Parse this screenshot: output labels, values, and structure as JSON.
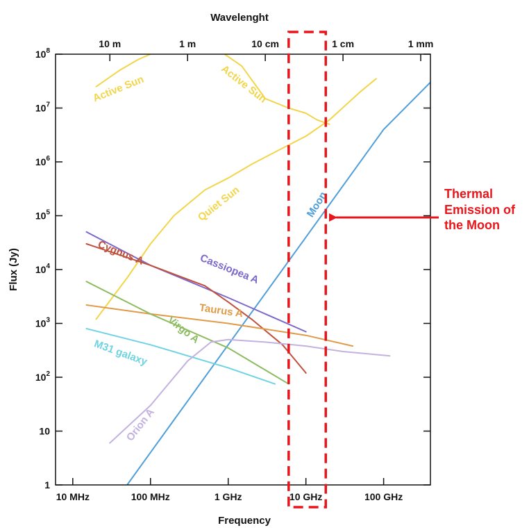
{
  "chart_data": {
    "type": "line",
    "title": "",
    "xlabel": "Frequency",
    "ylabel": "Flux (Jy)",
    "top_axis_label": "Wavelenght",
    "x_scale": "log",
    "y_scale": "log",
    "xlim_hz": [
      6000000.0,
      400000000000.0
    ],
    "ylim": [
      1,
      100000000.0
    ],
    "x_ticks": [
      {
        "value": 10000000.0,
        "label": "10 MHz"
      },
      {
        "value": 100000000.0,
        "label": "100 MHz"
      },
      {
        "value": 1000000000.0,
        "label": "1 GHz"
      },
      {
        "value": 10000000000.0,
        "label": "10 GHz"
      },
      {
        "value": 100000000000.0,
        "label": "100 GHz"
      }
    ],
    "top_ticks": [
      {
        "value": 30000000.0,
        "label": "10 m"
      },
      {
        "value": 300000000.0,
        "label": "1 m"
      },
      {
        "value": 3000000000.0,
        "label": "10 cm"
      },
      {
        "value": 30000000000.0,
        "label": "1 cm"
      },
      {
        "value": 300000000000.0,
        "label": "1 mm"
      }
    ],
    "y_ticks": [
      {
        "exp": 8,
        "label": "10",
        "sup": "8"
      },
      {
        "exp": 7,
        "label": "10",
        "sup": "7"
      },
      {
        "exp": 6,
        "label": "10",
        "sup": "6"
      },
      {
        "exp": 5,
        "label": "10",
        "sup": "5"
      },
      {
        "exp": 4,
        "label": "10",
        "sup": "4"
      },
      {
        "exp": 3,
        "label": "10",
        "sup": "3"
      },
      {
        "exp": 2,
        "label": "10",
        "sup": "2"
      },
      {
        "exp": 1,
        "label": "10",
        "sup": ""
      },
      {
        "exp": 0,
        "label": "1",
        "sup": ""
      }
    ],
    "series": [
      {
        "name": "Active Sun",
        "color": "#f2d54a",
        "label_pos": [
          40000000.0,
          20000000.0
        ],
        "label_angle": -22,
        "points": [
          [
            20000000.0,
            25000000.0
          ],
          [
            40000000.0,
            50000000.0
          ],
          [
            70000000.0,
            80000000.0
          ],
          [
            100000000.0,
            100000000.0
          ]
        ]
      },
      {
        "name": "Active Sun",
        "color": "#f2d54a",
        "label_pos": [
          1500000000.0,
          25000000.0
        ],
        "label_angle": 38,
        "points": [
          [
            900000000.0,
            100000000.0
          ],
          [
            1500000000.0,
            60000000.0
          ],
          [
            3000000000.0,
            15000000.0
          ],
          [
            6000000000.0,
            10000000.0
          ],
          [
            10000000000.0,
            8000000.0
          ],
          [
            14000000000.0,
            6000000.0
          ],
          [
            20000000000.0,
            5000000.0
          ]
        ]
      },
      {
        "name": "Quiet Sun",
        "color": "#f2d54a",
        "label_pos": [
          800000000.0,
          150000.0
        ],
        "label_angle": -38,
        "points": [
          [
            20000000.0,
            1200.0
          ],
          [
            50000000.0,
            7000.0
          ],
          [
            100000000.0,
            30000.0
          ],
          [
            200000000.0,
            100000.0
          ],
          [
            500000000.0,
            300000.0
          ],
          [
            1000000000.0,
            500000.0
          ],
          [
            2000000000.0,
            900000.0
          ],
          [
            5000000000.0,
            1800000.0
          ],
          [
            10000000000.0,
            3000000.0
          ],
          [
            20000000000.0,
            6000000.0
          ],
          [
            50000000000.0,
            20000000.0
          ],
          [
            80000000000.0,
            35000000.0
          ]
        ]
      },
      {
        "name": "Moon",
        "color": "#4f9ed9",
        "label_pos": [
          15000000000.0,
          150000.0
        ],
        "label_angle": -58,
        "points": [
          [
            50000000.0,
            1.0
          ],
          [
            100000000.0,
            4.0
          ],
          [
            1000000000.0,
            400.0
          ],
          [
            10000000000.0,
            40000.0
          ],
          [
            100000000000.0,
            4000000.0
          ],
          [
            400000000000.0,
            30000000.0
          ]
        ]
      },
      {
        "name": "Cassiopea A",
        "color": "#7b68c9",
        "label_pos": [
          1000000000.0,
          9000.0
        ],
        "label_angle": 22,
        "points": [
          [
            15000000.0,
            50000.0
          ],
          [
            100000000.0,
            12000.0
          ],
          [
            1000000000.0,
            3000.0
          ],
          [
            10000000000.0,
            700.0
          ]
        ]
      },
      {
        "name": "Cygnus A",
        "color": "#c0503c",
        "label_pos": [
          40000000.0,
          18000.0
        ],
        "label_angle": 22,
        "points": [
          [
            15000000.0,
            30000.0
          ],
          [
            100000000.0,
            12000.0
          ],
          [
            500000000.0,
            5000.0
          ],
          [
            1000000000.0,
            2500.0
          ],
          [
            2000000000.0,
            1200.0
          ],
          [
            5000000000.0,
            400.0
          ],
          [
            10000000000.0,
            120.0
          ]
        ]
      },
      {
        "name": "Taurus A",
        "color": "#e09a48",
        "label_pos": [
          800000000.0,
          1500.0
        ],
        "label_angle": 8,
        "points": [
          [
            15000000.0,
            2200.0
          ],
          [
            100000000.0,
            1500.0
          ],
          [
            1000000000.0,
            1000.0
          ],
          [
            10000000000.0,
            600.0
          ],
          [
            40000000000.0,
            380.0
          ]
        ]
      },
      {
        "name": "Virgo A",
        "color": "#8dbb60",
        "label_pos": [
          250000000.0,
          680.0
        ],
        "label_angle": 38,
        "points": [
          [
            15000000.0,
            6000.0
          ],
          [
            100000000.0,
            1500.0
          ],
          [
            1000000000.0,
            350.0
          ],
          [
            6000000000.0,
            75.0
          ]
        ]
      },
      {
        "name": "M31 galaxy",
        "color": "#6fd3e4",
        "label_pos": [
          40000000.0,
          250.0
        ],
        "label_angle": 20,
        "points": [
          [
            15000000.0,
            800.0
          ],
          [
            100000000.0,
            400.0
          ],
          [
            1000000000.0,
            150.0
          ],
          [
            4000000000.0,
            75.0
          ]
        ]
      },
      {
        "name": "Orion A",
        "color": "#c3b1e0",
        "label_pos": [
          80000000.0,
          12.0
        ],
        "label_angle": -52,
        "points": [
          [
            30000000.0,
            6.0
          ],
          [
            100000000.0,
            30.0
          ],
          [
            300000000.0,
            200.0
          ],
          [
            600000000.0,
            450.0
          ],
          [
            1000000000.0,
            500.0
          ],
          [
            3000000000.0,
            450.0
          ],
          [
            10000000000.0,
            380.0
          ],
          [
            30000000000.0,
            300.0
          ],
          [
            120000000000.0,
            250.0
          ]
        ]
      }
    ],
    "highlight_band_hz": [
      6000000000.0,
      18000000000.0
    ]
  },
  "annotation": {
    "lines": [
      "Thermal",
      "Emission of",
      "the Moon"
    ],
    "color": "#e8151b"
  }
}
